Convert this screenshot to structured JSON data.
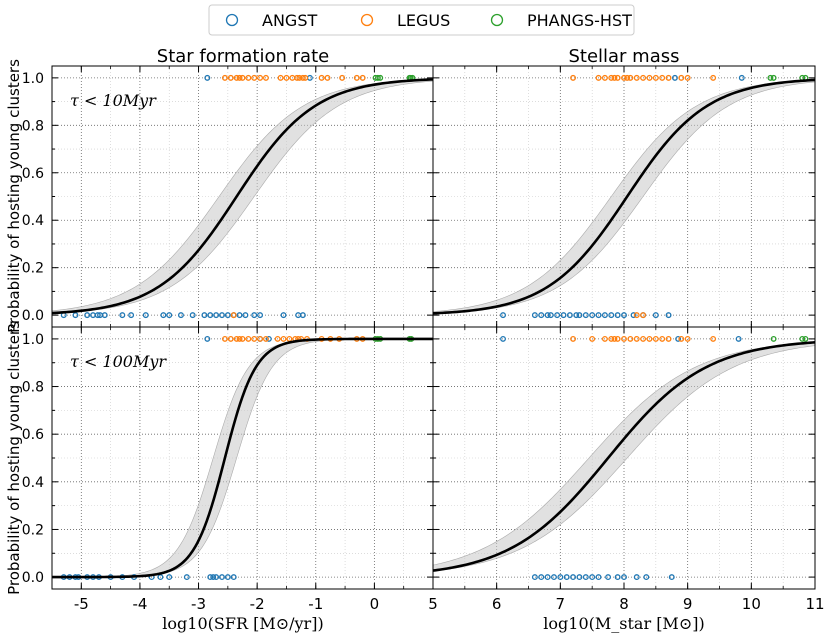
{
  "legend": {
    "entries": [
      {
        "label": "ANGST",
        "color": "#1f77b4"
      },
      {
        "label": "LEGUS",
        "color": "#ff7f0e"
      },
      {
        "label": "PHANGS-HST",
        "color": "#2ca02c"
      }
    ]
  },
  "ylabel": "Probability of hosting young clusters",
  "yticks": [
    "0.0",
    "0.2",
    "0.4",
    "0.6",
    "0.8",
    "1.0"
  ],
  "chart_data": [
    {
      "id": "sfr_10",
      "type": "scatter",
      "title": "Star formation rate",
      "annotation": "τ < 10Myr",
      "xlim": [
        -5.5,
        1.0
      ],
      "ylim": [
        -0.05,
        1.05
      ],
      "xticks": [],
      "xlabel": "",
      "curve": {
        "center": -2.35,
        "slope": 1.5,
        "band_low_center": -2.65,
        "band_high_center": -2.05,
        "band_slope": 1.4
      },
      "series": [
        {
          "name": "ANGST",
          "color": "#1f77b4",
          "zeros": [
            -5.3,
            -5.1,
            -4.9,
            -4.8,
            -4.72,
            -4.68,
            -4.6,
            -4.3,
            -4.15,
            -3.9,
            -3.6,
            -3.5,
            -3.3,
            -3.1,
            -2.9,
            -2.8,
            -2.7,
            -2.6,
            -2.5,
            -2.4,
            -2.3,
            -2.2,
            -2.05,
            -1.95,
            -1.55,
            -1.3,
            -1.22
          ],
          "ones": [
            -2.85,
            -1.1
          ]
        },
        {
          "name": "LEGUS",
          "color": "#ff7f0e",
          "zeros": [
            -2.4
          ],
          "ones": [
            -2.55,
            -2.45,
            -2.35,
            -2.3,
            -2.25,
            -2.15,
            -2.05,
            -1.95,
            -1.85,
            -1.6,
            -1.5,
            -1.4,
            -1.32,
            -1.28,
            -1.22,
            -1.18,
            -0.9,
            -0.8,
            -0.55,
            -0.3,
            -0.2
          ]
        },
        {
          "name": "PHANGS-HST",
          "color": "#2ca02c",
          "zeros": [],
          "ones": [
            0.02,
            0.06,
            0.1,
            0.6,
            0.62,
            0.65
          ]
        }
      ]
    },
    {
      "id": "mass_10",
      "type": "scatter",
      "title": "Stellar mass",
      "annotation": "",
      "xlim": [
        5,
        11
      ],
      "ylim": [
        -0.05,
        1.05
      ],
      "xticks": [],
      "xlabel": "",
      "curve": {
        "center": 8.05,
        "slope": 1.6,
        "band_low_center": 7.8,
        "band_high_center": 8.3,
        "band_slope": 1.5
      },
      "series": [
        {
          "name": "ANGST",
          "color": "#1f77b4",
          "zeros": [
            6.1,
            6.6,
            6.7,
            6.8,
            6.85,
            6.95,
            7.05,
            7.15,
            7.25,
            7.3,
            7.4,
            7.5,
            7.6,
            7.7,
            7.8,
            7.9,
            8.0,
            8.15,
            8.3,
            8.5,
            8.7
          ],
          "ones": [
            8.8,
            9.85
          ]
        },
        {
          "name": "LEGUS",
          "color": "#ff7f0e",
          "zeros": [
            8.2,
            8.3
          ],
          "ones": [
            7.2,
            7.6,
            7.7,
            7.8,
            7.85,
            7.9,
            8.0,
            8.05,
            8.1,
            8.2,
            8.3,
            8.4,
            8.5,
            8.6,
            8.7,
            8.9,
            9.0,
            9.4
          ]
        },
        {
          "name": "PHANGS-HST",
          "color": "#2ca02c",
          "zeros": [],
          "ones": [
            10.3,
            10.35,
            10.8,
            10.85
          ]
        }
      ]
    },
    {
      "id": "sfr_100",
      "type": "scatter",
      "title": "",
      "annotation": "τ < 100Myr",
      "xlim": [
        -5.5,
        1.0
      ],
      "ylim": [
        -0.05,
        1.05
      ],
      "xticks": [
        "-5",
        "-4",
        "-3",
        "-2",
        "-1",
        "0"
      ],
      "xlabel": "log10(SFR [M⊙/yr])",
      "curve": {
        "center": -2.55,
        "slope": 3.8,
        "band_low_center": -2.75,
        "band_high_center": -2.35,
        "band_slope": 3.3
      },
      "series": [
        {
          "name": "ANGST",
          "color": "#1f77b4",
          "zeros": [
            -5.3,
            -5.2,
            -5.1,
            -5.05,
            -4.9,
            -4.8,
            -4.7,
            -4.5,
            -4.3,
            -4.1,
            -3.8,
            -3.65,
            -3.5,
            -3.2,
            -2.8,
            -2.75,
            -2.7,
            -2.6,
            -2.5,
            -2.4
          ],
          "ones": [
            -2.85,
            -1.95,
            -1.8
          ]
        },
        {
          "name": "LEGUS",
          "color": "#ff7f0e",
          "zeros": [],
          "ones": [
            -2.55,
            -2.45,
            -2.35,
            -2.3,
            -2.25,
            -2.15,
            -2.05,
            -1.95,
            -1.85,
            -1.65,
            -1.55,
            -1.45,
            -1.35,
            -1.3,
            -1.25,
            -1.15,
            -0.9,
            -0.75,
            -0.6,
            -0.3,
            -0.2
          ]
        },
        {
          "name": "PHANGS-HST",
          "color": "#2ca02c",
          "zeros": [],
          "ones": [
            0.02,
            0.06,
            0.1,
            0.6,
            0.63
          ]
        }
      ]
    },
    {
      "id": "mass_100",
      "type": "scatter",
      "title": "",
      "annotation": "",
      "xlim": [
        5,
        11
      ],
      "ylim": [
        -0.05,
        1.05
      ],
      "xticks": [
        "5",
        "6",
        "7",
        "8",
        "9",
        "10",
        "11"
      ],
      "xlabel": "log10(M_star [M⊙])",
      "curve": {
        "center": 7.75,
        "slope": 1.3,
        "band_low_center": 7.45,
        "band_high_center": 8.05,
        "band_slope": 1.2
      },
      "series": [
        {
          "name": "ANGST",
          "color": "#1f77b4",
          "zeros": [
            6.6,
            6.7,
            6.8,
            6.9,
            7.0,
            7.1,
            7.2,
            7.3,
            7.4,
            7.5,
            7.6,
            7.75,
            7.9,
            8.0,
            8.2,
            8.35,
            8.75
          ],
          "ones": [
            6.1,
            8.85,
            9.8
          ]
        },
        {
          "name": "LEGUS",
          "color": "#ff7f0e",
          "zeros": [],
          "ones": [
            7.2,
            7.5,
            7.7,
            7.8,
            7.85,
            7.9,
            8.0,
            8.1,
            8.2,
            8.3,
            8.4,
            8.5,
            8.6,
            8.7,
            8.9,
            9.0,
            9.4
          ]
        },
        {
          "name": "PHANGS-HST",
          "color": "#2ca02c",
          "zeros": [],
          "ones": [
            10.35,
            10.8,
            10.85
          ]
        }
      ]
    }
  ]
}
